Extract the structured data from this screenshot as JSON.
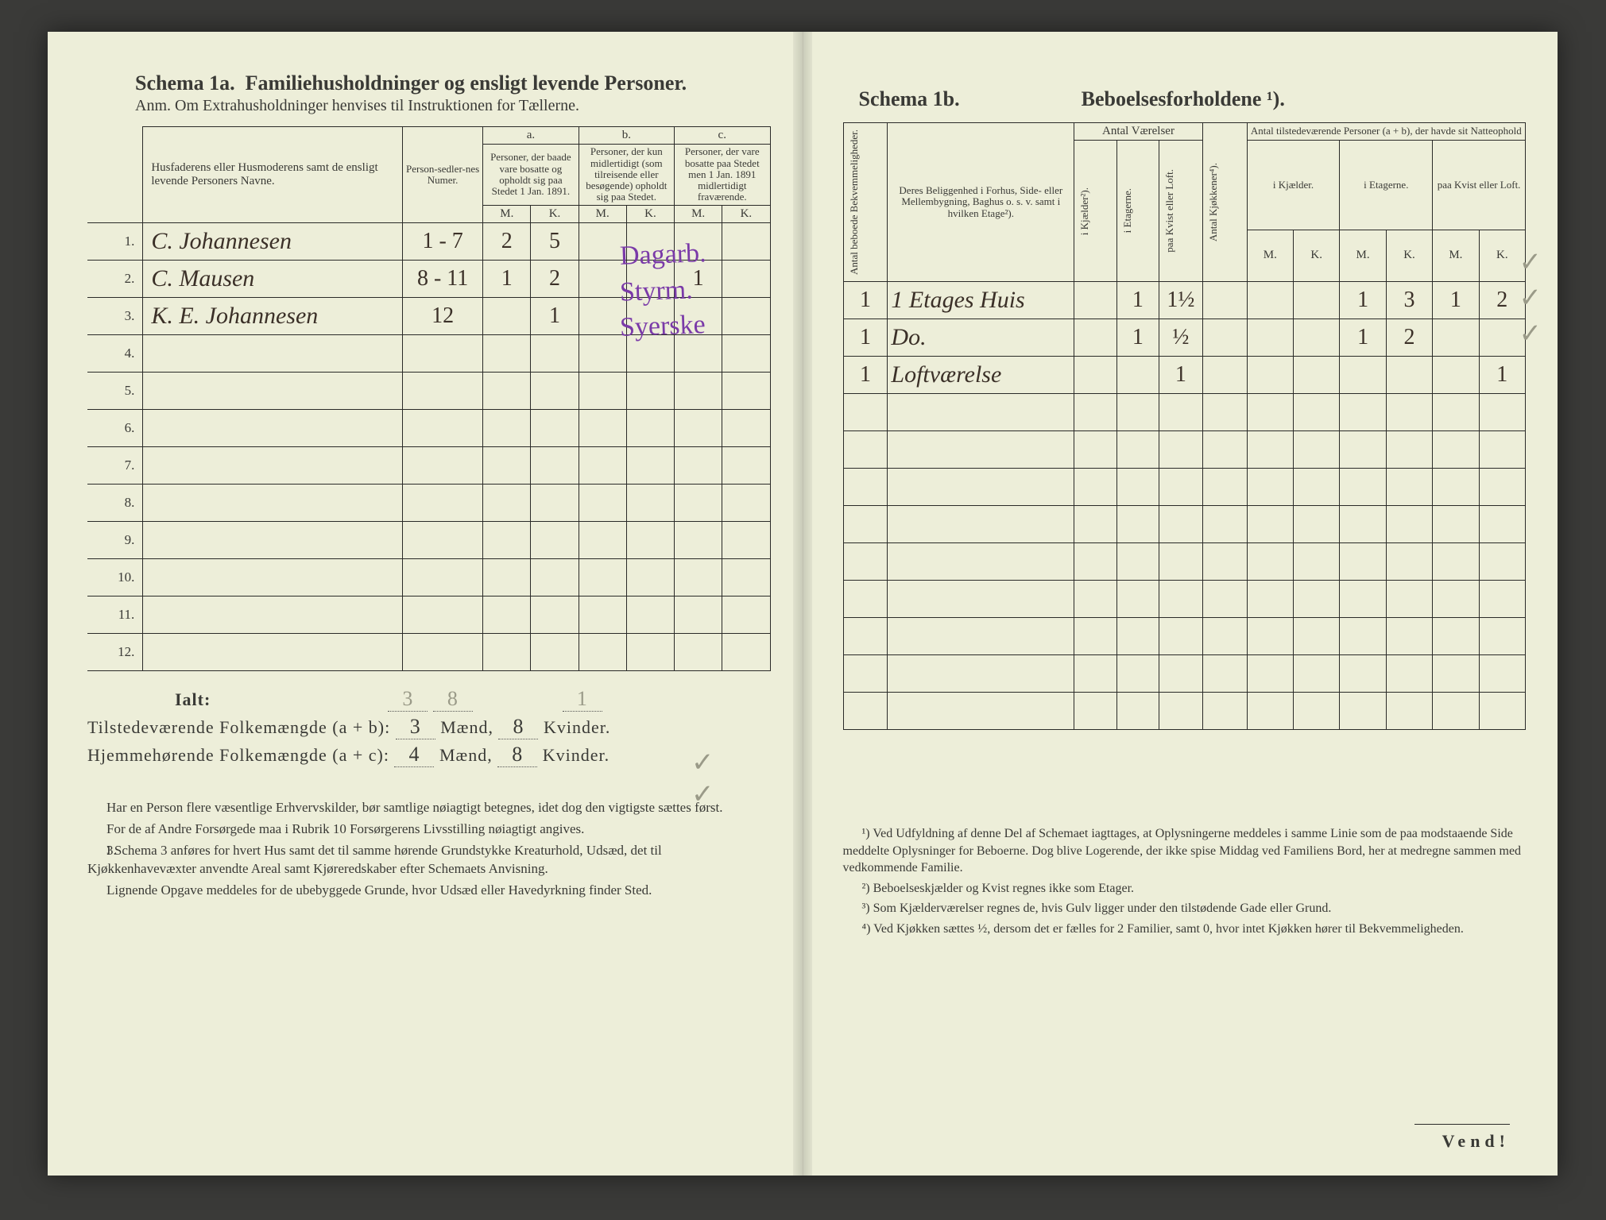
{
  "left": {
    "schema_label": "Schema 1a.",
    "schema_title": "Familiehusholdninger og ensligt levende Personer.",
    "anm": "Anm. Om Extrahusholdninger henvises til Instruktionen for Tællerne.",
    "col_name": "Husfaderens eller Husmoderens samt de ensligt levende Personers Navne.",
    "col_personsedler": "Person-sedler-nes Numer.",
    "group_a_label": "a.",
    "group_a": "Personer, der baade vare bosatte og opholdt sig paa Stedet 1 Jan. 1891.",
    "group_b_label": "b.",
    "group_b": "Personer, der kun midlertidigt (som tilreisende eller besøgende) opholdt sig paa Stedet.",
    "group_c_label": "c.",
    "group_c": "Personer, der vare bosatte paa Stedet men 1 Jan. 1891 midlertidigt fraværende.",
    "mk_m": "M.",
    "mk_k": "K.",
    "rows": [
      {
        "n": "1.",
        "name": "C. Johannesen",
        "sedler": "1 - 7",
        "a_m": "2",
        "a_k": "5",
        "b_m": "",
        "b_k": "",
        "c_m": "",
        "c_k": "",
        "occ": "Dagarb."
      },
      {
        "n": "2.",
        "name": "C. Mausen",
        "sedler": "8 - 11",
        "a_m": "1",
        "a_k": "2",
        "b_m": "",
        "b_k": "",
        "c_m": "1",
        "c_k": "",
        "occ": "Styrm."
      },
      {
        "n": "3.",
        "name": "K. E. Johannesen",
        "sedler": "12",
        "a_m": "",
        "a_k": "1",
        "b_m": "",
        "b_k": "",
        "c_m": "",
        "c_k": "",
        "occ": "Syerske"
      },
      {
        "n": "4."
      },
      {
        "n": "5."
      },
      {
        "n": "6."
      },
      {
        "n": "7."
      },
      {
        "n": "8."
      },
      {
        "n": "9."
      },
      {
        "n": "10."
      },
      {
        "n": "11."
      },
      {
        "n": "12."
      }
    ],
    "ialt_label": "Ialt:",
    "ialt_a_m": "3",
    "ialt_a_k": "8",
    "ialt_c_m": "1",
    "tilstede_label": "Tilstedeværende Folkemængde (a + b):",
    "tilstede_m": "3",
    "tilstede_k": "8",
    "maend": "Mænd,",
    "kvinder": "Kvinder.",
    "hjemme_label": "Hjemmehørende Folkemængde (a + c):",
    "hjemme_m": "4",
    "hjemme_k": "8",
    "foot1": "Har en Person flere væsentlige Erhvervskilder, bør samtlige nøiagtigt betegnes, idet dog den vigtigste sættes først.",
    "foot2": "For de af Andre Forsørgede maa i Rubrik 10 Forsørgerens Livsstilling nøiagtigt angives.",
    "foot3_num": "3.",
    "foot3": "I Schema 3 anføres for hvert Hus samt det til samme hørende Grundstykke Kreaturhold, Udsæd, det til Kjøkkenhavevæxter anvendte Areal samt Kjøreredskaber efter Schemaets Anvisning.",
    "foot4": "Lignende Opgave meddeles for de ubebyggede Grunde, hvor Udsæd eller Havedyrkning finder Sted."
  },
  "right": {
    "schema_label": "Schema 1b.",
    "schema_title": "Beboelsesforholdene ¹).",
    "col_antal_bekv": "Antal beboede Bekvemmeligheder.",
    "col_belig": "Deres Beliggenhed i Forhus, Side- eller Mellembygning, Baghus o. s. v. samt i hvilken Etage²).",
    "grp_vaerelser": "Antal Værelser",
    "col_kjaelder": "i Kjælder²).",
    "col_etagerne": "i Etagerne.",
    "col_kvist": "paa Kvist eller Loft.",
    "col_kjokkener": "Antal Kjøkkener⁴).",
    "grp_personer": "Antal tilstedeværende Personer (a + b), der havde sit Natteophold",
    "sub_kjaelder": "i Kjælder.",
    "sub_etagerne": "i Etagerne.",
    "sub_kvist": "paa Kvist eller Loft.",
    "mk_m": "M.",
    "mk_k": "K.",
    "rows": [
      {
        "bekv": "1",
        "belig": "1 Etages Huis",
        "kj": "",
        "et": "1",
        "kv": "1½",
        "kjok": "",
        "p_kj_m": "",
        "p_kj_k": "",
        "p_et_m": "1",
        "p_et_k": "3",
        "p_kv_m": "1",
        "p_kv_k": "2"
      },
      {
        "bekv": "1",
        "belig": "Do.",
        "kj": "",
        "et": "1",
        "kv": "½",
        "kjok": "",
        "p_kj_m": "",
        "p_kj_k": "",
        "p_et_m": "1",
        "p_et_k": "2",
        "p_kv_m": "",
        "p_kv_k": ""
      },
      {
        "bekv": "1",
        "belig": "Loftværelse",
        "kj": "",
        "et": "",
        "kv": "1",
        "kjok": "",
        "p_kj_m": "",
        "p_kj_k": "",
        "p_et_m": "",
        "p_et_k": "",
        "p_kv_m": "",
        "p_kv_k": "1"
      },
      {},
      {},
      {},
      {},
      {},
      {},
      {},
      {},
      {}
    ],
    "fn1": "¹) Ved Udfyldning af denne Del af Schemaet iagttages, at Oplysningerne meddeles i samme Linie som de paa modstaaende Side meddelte Oplysninger for Beboerne. Dog blive Logerende, der ikke spise Middag ved Familiens Bord, her at medregne sammen med vedkommende Familie.",
    "fn2": "²) Beboelseskjælder og Kvist regnes ikke som Etager.",
    "fn3": "³) Som Kjælderværelser regnes de, hvis Gulv ligger under den tilstødende Gade eller Grund.",
    "fn4": "⁴) Ved Kjøkken sættes ½, dersom det er fælles for 2 Familier, samt 0, hvor intet Kjøkken hører til Bekvemmeligheden.",
    "vend": "Vend!"
  },
  "colors": {
    "paper": "#edeed9",
    "ink": "#3a3a36",
    "handwriting": "#3b3028",
    "purple": "#7a3aa8",
    "pencil": "#9a9a88"
  }
}
